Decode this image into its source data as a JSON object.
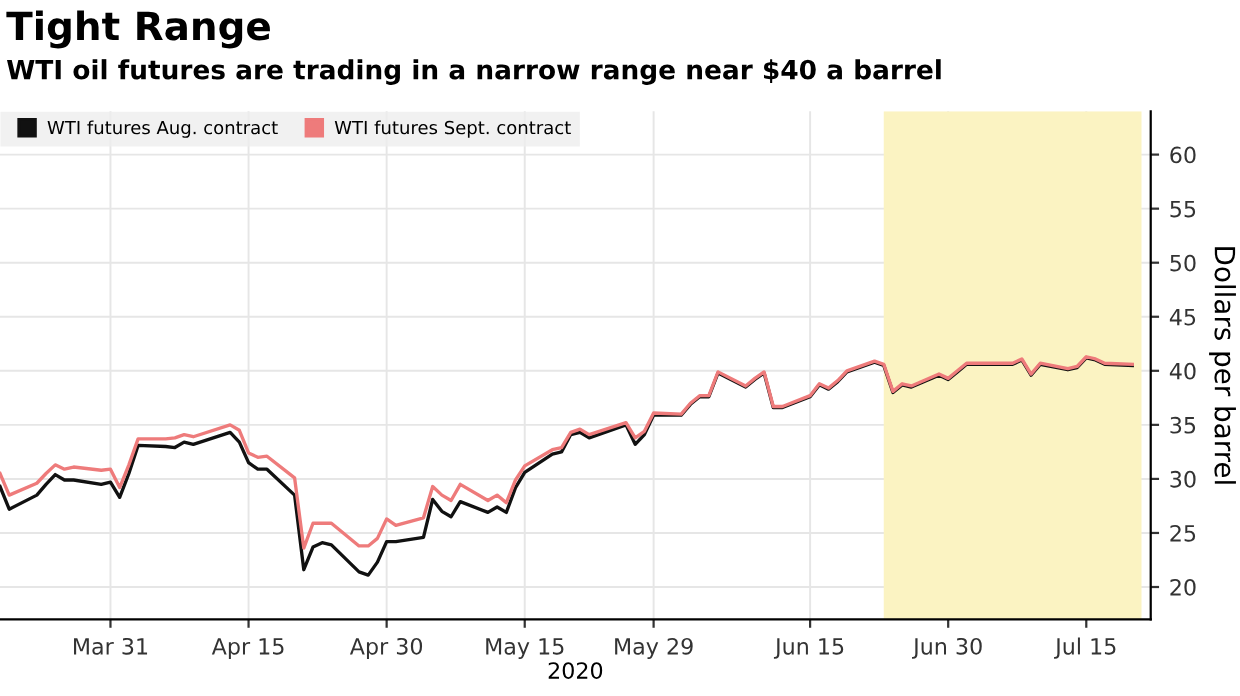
{
  "chart_data": {
    "type": "line",
    "title": "Tight Range",
    "subtitle": "WTI oil futures are trading in a narrow range near $40 a barrel",
    "xlabel": "2020",
    "ylabel": "Dollars per barrel",
    "x": [
      "2020-03-19",
      "2020-03-20",
      "2020-03-23",
      "2020-03-24",
      "2020-03-25",
      "2020-03-26",
      "2020-03-27",
      "2020-03-30",
      "2020-03-31",
      "2020-04-01",
      "2020-04-02",
      "2020-04-03",
      "2020-04-06",
      "2020-04-07",
      "2020-04-08",
      "2020-04-09",
      "2020-04-13",
      "2020-04-14",
      "2020-04-15",
      "2020-04-16",
      "2020-04-17",
      "2020-04-20",
      "2020-04-21",
      "2020-04-22",
      "2020-04-23",
      "2020-04-24",
      "2020-04-27",
      "2020-04-28",
      "2020-04-29",
      "2020-04-30",
      "2020-05-01",
      "2020-05-04",
      "2020-05-05",
      "2020-05-06",
      "2020-05-07",
      "2020-05-08",
      "2020-05-11",
      "2020-05-12",
      "2020-05-13",
      "2020-05-14",
      "2020-05-15",
      "2020-05-18",
      "2020-05-19",
      "2020-05-20",
      "2020-05-21",
      "2020-05-22",
      "2020-05-26",
      "2020-05-27",
      "2020-05-28",
      "2020-05-29",
      "2020-06-01",
      "2020-06-02",
      "2020-06-03",
      "2020-06-04",
      "2020-06-05",
      "2020-06-08",
      "2020-06-09",
      "2020-06-10",
      "2020-06-11",
      "2020-06-12",
      "2020-06-15",
      "2020-06-16",
      "2020-06-17",
      "2020-06-18",
      "2020-06-19",
      "2020-06-22",
      "2020-06-23",
      "2020-06-24",
      "2020-06-25",
      "2020-06-26",
      "2020-06-29",
      "2020-06-30",
      "2020-07-01",
      "2020-07-02",
      "2020-07-06",
      "2020-07-07",
      "2020-07-08",
      "2020-07-09",
      "2020-07-10",
      "2020-07-13",
      "2020-07-14",
      "2020-07-15",
      "2020-07-16",
      "2020-07-17",
      "2020-07-20"
    ],
    "series": [
      {
        "name": "WTI futures Aug. contract",
        "color": "#111111",
        "values": [
          29.3,
          27.2,
          28.5,
          29.5,
          30.4,
          29.9,
          29.9,
          29.5,
          29.7,
          28.3,
          30.5,
          33.1,
          33.0,
          32.9,
          33.4,
          33.2,
          34.3,
          33.4,
          31.5,
          30.9,
          30.9,
          28.5,
          21.6,
          23.7,
          24.1,
          23.9,
          21.4,
          21.1,
          22.3,
          24.2,
          24.2,
          24.6,
          28.1,
          27.0,
          26.5,
          27.9,
          26.9,
          27.4,
          26.9,
          29.2,
          30.6,
          32.3,
          32.5,
          34.1,
          34.3,
          33.8,
          35.0,
          33.2,
          34.1,
          35.9,
          35.9,
          36.9,
          37.6,
          37.6,
          39.8,
          38.5,
          39.2,
          39.8,
          36.6,
          36.6,
          37.6,
          38.7,
          38.3,
          39.0,
          39.9,
          40.8,
          40.5,
          38.0,
          38.7,
          38.5,
          39.6,
          39.2,
          39.9,
          40.6,
          40.6,
          40.6,
          41.0,
          39.6,
          40.6,
          40.1,
          40.3,
          41.2,
          41.0,
          40.6,
          40.5
        ]
      },
      {
        "name": "WTI futures Sept. contract",
        "color": "#ee7b7b",
        "values": [
          30.5,
          28.5,
          29.6,
          30.5,
          31.3,
          30.9,
          31.1,
          30.8,
          30.9,
          29.2,
          31.3,
          33.7,
          33.7,
          33.8,
          34.1,
          33.9,
          35.0,
          34.5,
          32.4,
          32.0,
          32.1,
          30.1,
          23.6,
          25.9,
          25.9,
          25.9,
          23.8,
          23.8,
          24.5,
          26.3,
          25.7,
          26.4,
          29.3,
          28.5,
          28.0,
          29.5,
          28.0,
          28.5,
          27.8,
          29.9,
          31.2,
          32.7,
          32.9,
          34.3,
          34.6,
          34.1,
          35.2,
          33.8,
          34.4,
          36.1,
          36.0,
          37.0,
          37.7,
          37.7,
          39.9,
          38.6,
          39.3,
          39.9,
          36.7,
          36.7,
          37.7,
          38.8,
          38.4,
          39.1,
          40.0,
          40.9,
          40.6,
          38.1,
          38.8,
          38.6,
          39.7,
          39.3,
          40.0,
          40.7,
          40.7,
          40.7,
          41.1,
          39.7,
          40.7,
          40.2,
          40.4,
          41.3,
          41.1,
          40.7,
          40.6
        ]
      }
    ],
    "xlim": [
      "2020-03-19",
      "2020-07-22"
    ],
    "xticks": [
      {
        "value": "2020-03-31",
        "label": "Mar 31"
      },
      {
        "value": "2020-04-15",
        "label": "Apr 15"
      },
      {
        "value": "2020-04-30",
        "label": "Apr 30"
      },
      {
        "value": "2020-05-15",
        "label": "May 15"
      },
      {
        "value": "2020-05-29",
        "label": "May 29"
      },
      {
        "value": "2020-06-15",
        "label": "Jun 15"
      },
      {
        "value": "2020-06-30",
        "label": "Jun 30"
      },
      {
        "value": "2020-07-15",
        "label": "Jul 15"
      }
    ],
    "ylim": [
      17,
      64
    ],
    "yticks": [
      20,
      25,
      30,
      35,
      40,
      45,
      50,
      55,
      60
    ],
    "bands": [
      {
        "axis": "x",
        "from": "2020-06-23",
        "to": "2020-07-21",
        "color": "#fbf3c2"
      }
    ],
    "grid": true,
    "legend": "top left",
    "marker": "none",
    "line_style": "solid"
  }
}
